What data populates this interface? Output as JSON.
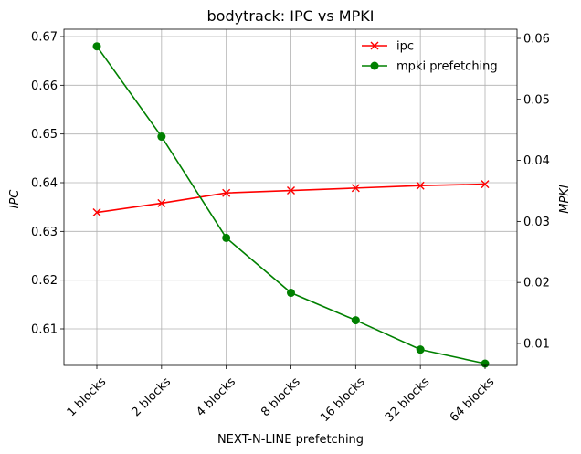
{
  "chart_data": {
    "type": "line",
    "title": "bodytrack: IPC vs MPKI",
    "xlabel": "NEXT-N-LINE prefetching",
    "ylabel_left": "IPC",
    "ylabel_right": "MPKI",
    "categories": [
      "1 blocks",
      "2 blocks",
      "4 blocks",
      "8 blocks",
      "16 blocks",
      "32 blocks",
      "64 blocks"
    ],
    "y_left_ticks": [
      "0.61",
      "0.62",
      "0.63",
      "0.64",
      "0.65",
      "0.66",
      "0.67"
    ],
    "y_right_ticks": [
      "0.01",
      "0.02",
      "0.03",
      "0.04",
      "0.05",
      "0.06"
    ],
    "ylim_left": [
      0.6025,
      0.6715
    ],
    "ylim_right": [
      0.0064,
      0.0615
    ],
    "grid": true,
    "legend_position": "top-right",
    "series": [
      {
        "name": "ipc",
        "axis": "left",
        "color": "#ff0000",
        "marker": "x",
        "values": [
          0.6339,
          0.6358,
          0.6379,
          0.6384,
          0.6389,
          0.6394,
          0.6397
        ]
      },
      {
        "name": "mpki prefetching",
        "axis": "right",
        "color": "#008000",
        "marker": "o",
        "values": [
          0.0587,
          0.0439,
          0.0273,
          0.0183,
          0.0138,
          0.009,
          0.0067
        ]
      }
    ]
  }
}
